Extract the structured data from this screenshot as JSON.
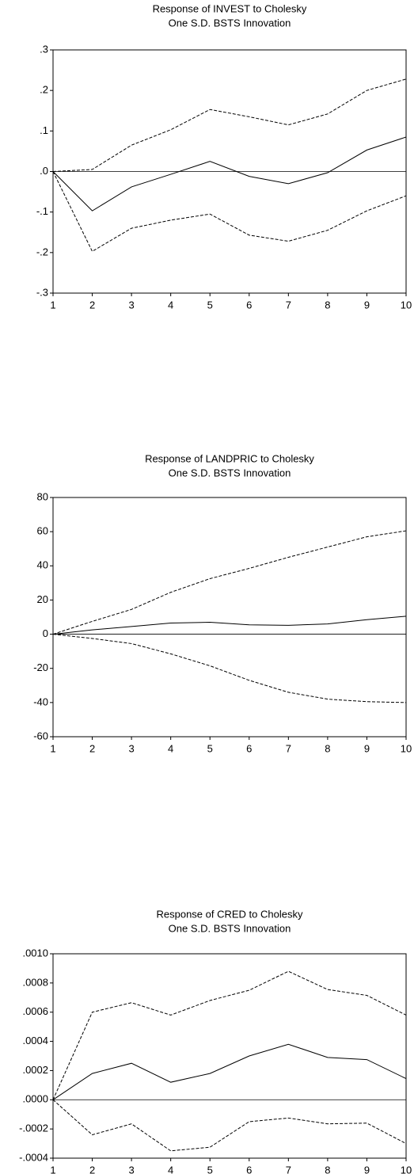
{
  "chart_data": [
    {
      "type": "line",
      "title": "Response of INVEST to Cholesky",
      "subtitle": "One S.D. BSTS Innovation",
      "x": [
        1,
        2,
        3,
        4,
        5,
        6,
        7,
        8,
        9,
        10
      ],
      "xlim": [
        1,
        10
      ],
      "xticks": [
        1,
        2,
        3,
        4,
        5,
        6,
        7,
        8,
        9,
        10
      ],
      "ylim": [
        -0.3,
        0.3
      ],
      "yticks": [
        {
          "value": -0.3,
          "label": "-.3"
        },
        {
          "value": -0.2,
          "label": "-.2"
        },
        {
          "value": -0.1,
          "label": "-.1"
        },
        {
          "value": 0,
          "label": ".0"
        },
        {
          "value": 0.1,
          "label": ".1"
        },
        {
          "value": 0.2,
          "label": ".2"
        },
        {
          "value": 0.3,
          "label": ".3"
        }
      ],
      "zero_line": true,
      "series": [
        {
          "color": "#000000",
          "dash": false,
          "values": [
            0,
            -0.097,
            -0.038,
            -0.007,
            0.025,
            -0.012,
            -0.03,
            -0.003,
            0.053,
            0.085
          ]
        },
        {
          "color": "#000000",
          "dash": true,
          "values": [
            0,
            0.005,
            0.065,
            0.103,
            0.153,
            0.135,
            0.115,
            0.142,
            0.2,
            0.228
          ]
        },
        {
          "color": "#000000",
          "dash": true,
          "values": [
            0,
            -0.197,
            -0.14,
            -0.12,
            -0.105,
            -0.157,
            -0.172,
            -0.145,
            -0.097,
            -0.06
          ]
        }
      ]
    },
    {
      "type": "line",
      "title": "Response of LANDPRIC to Cholesky",
      "subtitle": "One S.D. BSTS Innovation",
      "x": [
        1,
        2,
        3,
        4,
        5,
        6,
        7,
        8,
        9,
        10
      ],
      "xlim": [
        1,
        10
      ],
      "xticks": [
        1,
        2,
        3,
        4,
        5,
        6,
        7,
        8,
        9,
        10
      ],
      "ylim": [
        -60,
        80
      ],
      "yticks": [
        -60,
        -40,
        -20,
        0,
        20,
        40,
        60,
        80
      ],
      "zero_line": true,
      "series": [
        {
          "color": "#000000",
          "dash": false,
          "values": [
            0,
            2.5,
            4.5,
            6.5,
            7,
            5.5,
            5.2,
            6,
            8.5,
            10.5
          ]
        },
        {
          "color": "#000000",
          "dash": true,
          "values": [
            0,
            7.5,
            14.5,
            24.5,
            32.5,
            38.5,
            45,
            51,
            57,
            60.5
          ]
        },
        {
          "color": "#000000",
          "dash": true,
          "values": [
            0,
            -2.5,
            -5.5,
            -11.5,
            -18.5,
            -27,
            -34,
            -38,
            -39.5,
            -40
          ]
        }
      ]
    },
    {
      "type": "line",
      "title": "Response of CRED to Cholesky",
      "subtitle": "One S.D. BSTS Innovation",
      "x": [
        1,
        2,
        3,
        4,
        5,
        6,
        7,
        8,
        9,
        10
      ],
      "xlim": [
        1,
        10
      ],
      "xticks": [
        1,
        2,
        3,
        4,
        5,
        6,
        7,
        8,
        9,
        10
      ],
      "ylim": [
        -0.0004,
        0.001
      ],
      "yticks": [
        {
          "value": -0.0004,
          "label": "-.0004"
        },
        {
          "value": -0.0002,
          "label": "-.0002"
        },
        {
          "value": 0,
          "label": ".0000"
        },
        {
          "value": 0.0002,
          "label": ".0002"
        },
        {
          "value": 0.0004,
          "label": ".0004"
        },
        {
          "value": 0.0006,
          "label": ".0006"
        },
        {
          "value": 0.0008,
          "label": ".0008"
        },
        {
          "value": 0.001,
          "label": ".0010"
        }
      ],
      "zero_line": true,
      "series": [
        {
          "color": "#000000",
          "dash": false,
          "values": [
            0,
            0.00018,
            0.00025,
            0.00012,
            0.00018,
            0.0003,
            0.00038,
            0.00029,
            0.000275,
            0.000145
          ]
        },
        {
          "color": "#000000",
          "dash": true,
          "values": [
            0,
            0.0006,
            0.000665,
            0.00058,
            0.00068,
            0.00075,
            0.00088,
            0.000755,
            0.000715,
            0.00058
          ]
        },
        {
          "color": "#000000",
          "dash": true,
          "values": [
            0,
            -0.00024,
            -0.000165,
            -0.00035,
            -0.000325,
            -0.00015,
            -0.000125,
            -0.000165,
            -0.00016,
            -0.0003
          ]
        }
      ]
    }
  ]
}
